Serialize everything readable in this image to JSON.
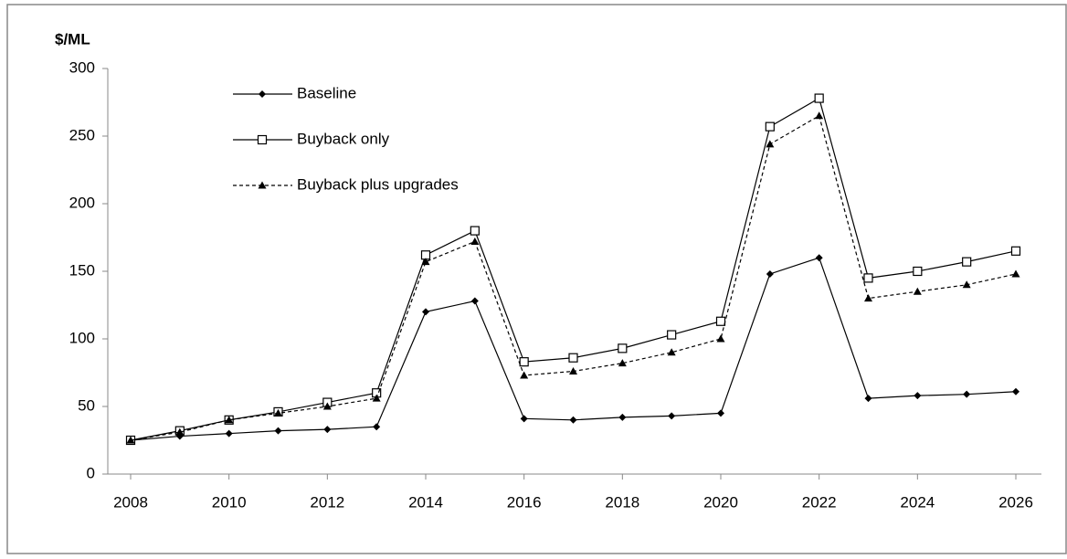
{
  "chart_data": {
    "type": "line",
    "y_label": "$/ML",
    "x": [
      2008,
      2009,
      2010,
      2011,
      2012,
      2013,
      2014,
      2015,
      2016,
      2017,
      2018,
      2019,
      2020,
      2021,
      2022,
      2023,
      2024,
      2025,
      2026
    ],
    "xlim": [
      2008,
      2026
    ],
    "xticks": [
      2008,
      2010,
      2012,
      2014,
      2016,
      2018,
      2020,
      2022,
      2024,
      2026
    ],
    "ylim": [
      0,
      300
    ],
    "yticks": [
      0,
      50,
      100,
      150,
      200,
      250,
      300
    ],
    "grid": false,
    "legend": "upper left",
    "series": [
      {
        "name": "Baseline",
        "color": "#000000",
        "marker": "diamond",
        "dash": false,
        "values": [
          25,
          28,
          30,
          32,
          33,
          35,
          120,
          128,
          41,
          40,
          42,
          43,
          45,
          148,
          160,
          56,
          58,
          59,
          61
        ]
      },
      {
        "name": "Buyback only",
        "color": "#000000",
        "marker": "square",
        "dash": false,
        "values": [
          25,
          32,
          40,
          46,
          53,
          60,
          162,
          180,
          83,
          86,
          93,
          103,
          113,
          257,
          278,
          145,
          150,
          157,
          165
        ]
      },
      {
        "name": "Buyback plus upgrades",
        "color": "#000000",
        "marker": "triangle",
        "dash": true,
        "values": [
          25,
          31,
          40,
          45,
          50,
          56,
          157,
          172,
          73,
          76,
          82,
          90,
          100,
          244,
          265,
          130,
          135,
          140,
          148
        ]
      }
    ]
  }
}
